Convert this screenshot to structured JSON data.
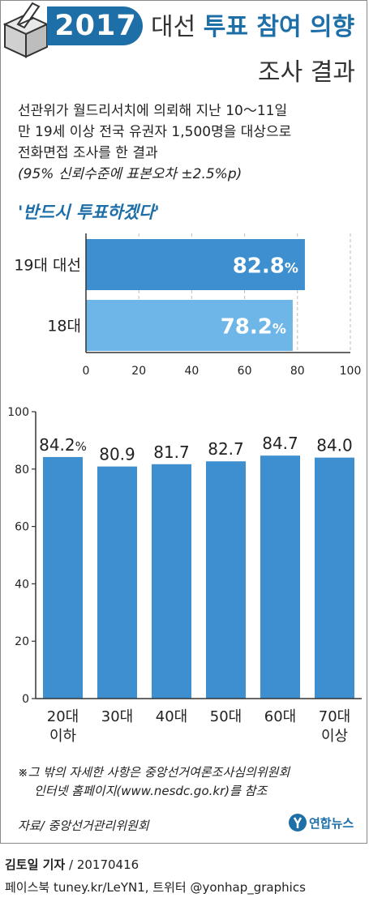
{
  "header": {
    "year": "2017",
    "title_normal": "대선",
    "title_bold": "투표 참여 의향",
    "subtitle": "조사 결과"
  },
  "lead": {
    "lines": [
      "선관위가 월드리서치에 의뢰해 지난 10～11일",
      "만 19세 이상 전국 유권자 1,500명을 대상으로",
      "전화면접 조사를 한 결과",
      "(95% 신뢰수준에 표본오차 ±2.5%p)"
    ]
  },
  "colors": {
    "brand": "#1e6fa8",
    "bar_dark": "#3d8fd0",
    "bar_light": "#6fb6e8",
    "axis": "#333333",
    "grid": "#bdbdbd"
  },
  "chart_data": [
    {
      "type": "bar",
      "orientation": "horizontal",
      "title": "'반드시 투표하겠다'",
      "categories": [
        "19대 대선",
        "18대"
      ],
      "values": [
        82.8,
        78.2
      ],
      "value_labels": [
        "82.8%",
        "78.2%"
      ],
      "xlim": [
        0,
        100
      ],
      "xticks": [
        0,
        20,
        40,
        60,
        80,
        100
      ],
      "grid": "vertical dashed"
    },
    {
      "type": "bar",
      "orientation": "vertical",
      "categories": [
        "20대\n이하",
        "30대",
        "40대",
        "50대",
        "60대",
        "70대\n이상"
      ],
      "category_lines": [
        [
          "20대",
          "이하"
        ],
        [
          "30대"
        ],
        [
          "40대"
        ],
        [
          "50대"
        ],
        [
          "60대"
        ],
        [
          "70대",
          "이상"
        ]
      ],
      "values": [
        84.2,
        80.9,
        81.7,
        82.7,
        84.7,
        84.0
      ],
      "value_labels": [
        "84.2%",
        "80.9",
        "81.7",
        "82.7",
        "84.7",
        "84.0"
      ],
      "ylim": [
        0,
        100
      ],
      "yticks": [
        0,
        20,
        40,
        60,
        80,
        100
      ]
    }
  ],
  "note": {
    "lines": [
      "※그 밖의 자세한 사항은 중앙선거여론조사심의위원회",
      "인터넷 홈페이지(www.nesdc.go.kr)를 참조"
    ]
  },
  "source": "자료/ 중앙선거관리위원회",
  "logo_text": "연합뉴스",
  "credit": {
    "reporter": "김토일 기자",
    "date": " / 20170416",
    "social": "페이스북 tuney.kr/LeYN1, 트위터 @yonhap_graphics"
  }
}
